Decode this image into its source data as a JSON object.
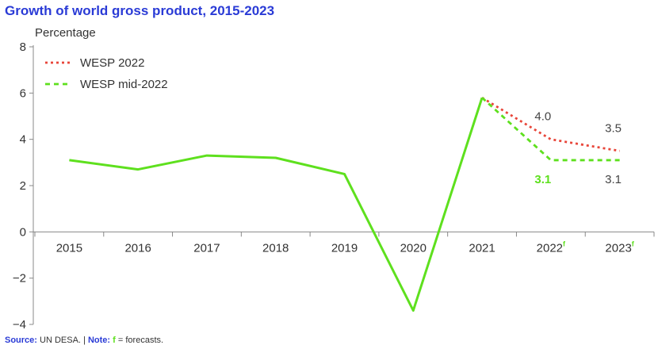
{
  "chart_data": {
    "type": "line",
    "title": "Growth of world gross product, 2015-2023",
    "ylabel": "Percentage",
    "xlabel": "",
    "ylim": [
      -4,
      8
    ],
    "yticks": [
      -4,
      -2,
      0,
      2,
      4,
      6,
      8
    ],
    "categories": [
      "2015",
      "2016",
      "2017",
      "2018",
      "2019",
      "2020",
      "2021",
      "2022",
      "2023"
    ],
    "forecast_mark": "f",
    "forecast_categories": [
      "2022",
      "2023"
    ],
    "series": [
      {
        "name": "",
        "style": "solid",
        "color": "#5ee01e",
        "x": [
          "2015",
          "2016",
          "2017",
          "2018",
          "2019",
          "2020",
          "2021"
        ],
        "values": [
          3.1,
          2.7,
          3.3,
          3.2,
          2.5,
          -3.4,
          5.8
        ]
      },
      {
        "name": "WESP 2022",
        "style": "dotted",
        "color": "#e8463a",
        "x": [
          "2021",
          "2022",
          "2023"
        ],
        "values": [
          5.8,
          4.0,
          3.5
        ]
      },
      {
        "name": "WESP mid-2022",
        "style": "dashed",
        "color": "#5ee01e",
        "x": [
          "2021",
          "2022",
          "2023"
        ],
        "values": [
          5.8,
          3.1,
          3.1
        ]
      }
    ],
    "data_labels": [
      {
        "series": "WESP 2022",
        "x": "2022",
        "text": "4.0",
        "color": "#444444",
        "bold": false,
        "pos": "above"
      },
      {
        "series": "WESP 2022",
        "x": "2023",
        "text": "3.5",
        "color": "#444444",
        "bold": false,
        "pos": "above"
      },
      {
        "series": "WESP mid-2022",
        "x": "2022",
        "text": "3.1",
        "color": "#5ee01e",
        "bold": true,
        "pos": "below"
      },
      {
        "series": "WESP mid-2022",
        "x": "2023",
        "text": "3.1",
        "color": "#444444",
        "bold": false,
        "pos": "below"
      }
    ],
    "legend_position": "top-left",
    "grid": false
  },
  "footnote": {
    "source_label": "Source:",
    "source_text": "UN DESA.",
    "separator": "|",
    "note_label": "Note:",
    "note_mark": "f",
    "note_text": "= forecasts."
  }
}
